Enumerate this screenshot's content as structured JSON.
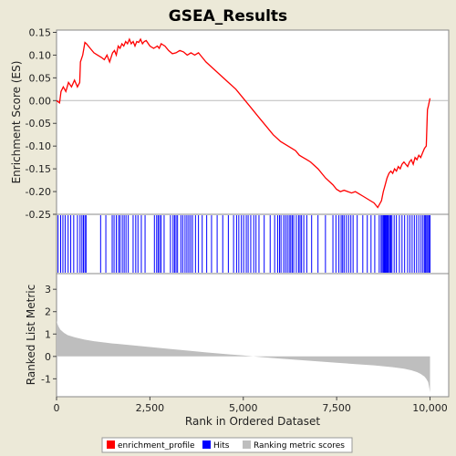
{
  "chart_data": {
    "type": "line",
    "title": "GSEA_Results",
    "xlabel": "Rank in Ordered Dataset",
    "xlim": [
      0,
      10500
    ],
    "xticks": [
      0,
      2500,
      5000,
      7500,
      10000
    ],
    "xtick_labels": [
      "0",
      "2,500",
      "5,000",
      "7,500",
      "10,000"
    ],
    "legend": {
      "placement": "bottom",
      "entries": [
        {
          "label": "enrichment_profile",
          "color": "#FF0000"
        },
        {
          "label": "Hits",
          "color": "#0000FF"
        },
        {
          "label": "Ranking metric scores",
          "color": "#BEBEBE"
        }
      ]
    },
    "panels": [
      {
        "name": "enrichment",
        "ylabel": "Enrichment Score (ES)",
        "ylim": [
          -0.25,
          0.155
        ],
        "yticks": [
          0.15,
          0.1,
          0.05,
          0.0,
          -0.05,
          -0.1,
          -0.15,
          -0.2,
          -0.25
        ],
        "ytick_labels": [
          "0.15",
          "0.10",
          "0.05",
          "0.00",
          "-0.05",
          "-0.10",
          "-0.15",
          "-0.20",
          "-0.25"
        ],
        "series": [
          {
            "color": "#FF0000",
            "x": [
              0,
              80,
              120,
              180,
              250,
              320,
              400,
              480,
              560,
              620,
              640,
              700,
              760,
              800,
              900,
              1000,
              1100,
              1200,
              1280,
              1350,
              1420,
              1500,
              1550,
              1600,
              1650,
              1700,
              1750,
              1800,
              1850,
              1900,
              1950,
              2000,
              2050,
              2100,
              2150,
              2200,
              2250,
              2300,
              2350,
              2400,
              2500,
              2600,
              2700,
              2750,
              2800,
              2900,
              3000,
              3100,
              3200,
              3300,
              3400,
              3500,
              3600,
              3700,
              3800,
              3900,
              4000,
              4200,
              4400,
              4600,
              4800,
              5000,
              5200,
              5400,
              5600,
              5800,
              6000,
              6100,
              6200,
              6300,
              6400,
              6500,
              6600,
              6700,
              6800,
              7000,
              7200,
              7400,
              7500,
              7600,
              7700,
              7800,
              7900,
              8000,
              8100,
              8200,
              8300,
              8400,
              8500,
              8600,
              8700,
              8750,
              8800,
              8850,
              8900,
              8950,
              9000,
              9050,
              9100,
              9150,
              9200,
              9250,
              9300,
              9350,
              9400,
              9450,
              9500,
              9550,
              9600,
              9650,
              9700,
              9750,
              9800,
              9850,
              9900,
              9930,
              9960,
              10000
            ],
            "values": [
              0.0,
              -0.005,
              0.02,
              0.03,
              0.02,
              0.04,
              0.03,
              0.045,
              0.03,
              0.04,
              0.085,
              0.1,
              0.128,
              0.125,
              0.115,
              0.105,
              0.1,
              0.095,
              0.09,
              0.1,
              0.085,
              0.105,
              0.11,
              0.1,
              0.12,
              0.115,
              0.125,
              0.12,
              0.13,
              0.125,
              0.135,
              0.125,
              0.13,
              0.12,
              0.13,
              0.128,
              0.135,
              0.125,
              0.13,
              0.132,
              0.12,
              0.115,
              0.12,
              0.115,
              0.125,
              0.12,
              0.11,
              0.103,
              0.105,
              0.11,
              0.107,
              0.1,
              0.105,
              0.1,
              0.105,
              0.095,
              0.085,
              0.07,
              0.055,
              0.04,
              0.025,
              0.005,
              -0.015,
              -0.035,
              -0.055,
              -0.075,
              -0.09,
              -0.095,
              -0.1,
              -0.105,
              -0.11,
              -0.12,
              -0.125,
              -0.13,
              -0.135,
              -0.15,
              -0.17,
              -0.185,
              -0.195,
              -0.2,
              -0.197,
              -0.2,
              -0.203,
              -0.2,
              -0.205,
              -0.21,
              -0.215,
              -0.22,
              -0.225,
              -0.235,
              -0.22,
              -0.2,
              -0.185,
              -0.17,
              -0.16,
              -0.155,
              -0.16,
              -0.15,
              -0.155,
              -0.145,
              -0.15,
              -0.14,
              -0.135,
              -0.14,
              -0.145,
              -0.135,
              -0.13,
              -0.14,
              -0.125,
              -0.13,
              -0.12,
              -0.125,
              -0.115,
              -0.105,
              -0.1,
              -0.02,
              -0.01,
              0.005
            ]
          }
        ]
      },
      {
        "name": "hits",
        "hit_ranks": [
          40,
          110,
          170,
          230,
          310,
          380,
          460,
          560,
          630,
          680,
          720,
          760,
          790,
          1180,
          1320,
          1490,
          1540,
          1600,
          1660,
          1700,
          1760,
          1810,
          1860,
          1920,
          2050,
          2120,
          2180,
          2270,
          2370,
          2620,
          2680,
          2720,
          2760,
          2800,
          2880,
          3050,
          3120,
          3160,
          3200,
          3240,
          3330,
          3380,
          3440,
          3490,
          3540,
          3590,
          3640,
          3720,
          3800,
          3900,
          4020,
          4150,
          4300,
          4450,
          4600,
          4740,
          4820,
          4880,
          4950,
          5010,
          5080,
          5130,
          5200,
          5280,
          5340,
          5420,
          5560,
          5720,
          5840,
          5920,
          5970,
          6010,
          6080,
          6130,
          6180,
          6230,
          6270,
          6310,
          6350,
          6420,
          6480,
          6520,
          6560,
          6620,
          6700,
          6830,
          7000,
          7200,
          7400,
          7480,
          7560,
          7620,
          7660,
          7700,
          7760,
          7820,
          7880,
          7940,
          8050,
          8200,
          8320,
          8420,
          8520,
          8640,
          8690,
          8720,
          8750,
          8770,
          8790,
          8810,
          8830,
          8850,
          8870,
          8890,
          8920,
          8950,
          8980,
          9040,
          9100,
          9180,
          9250,
          9320,
          9400,
          9460,
          9520,
          9580,
          9640,
          9700,
          9760,
          9810,
          9850,
          9880,
          9910,
          9940,
          9970,
          10000
        ]
      },
      {
        "name": "ranked_metric",
        "ylabel": "Ranked List Metric",
        "ylim": [
          -1.8,
          3.7
        ],
        "yticks": [
          3,
          2,
          1,
          0,
          -1
        ],
        "ytick_labels": [
          "3",
          "2",
          "1",
          "0",
          "-1"
        ],
        "fill_color": "#BEBEBE",
        "x": [
          0,
          25,
          50,
          100,
          200,
          300,
          500,
          750,
          1000,
          1500,
          2000,
          2500,
          3000,
          3500,
          4000,
          4500,
          5000,
          5500,
          6000,
          6500,
          7000,
          7500,
          8000,
          8500,
          9000,
          9300,
          9500,
          9650,
          9750,
          9850,
          9900,
          9950,
          9980,
          10000
        ],
        "values": [
          1.6,
          1.45,
          1.35,
          1.2,
          1.05,
          0.95,
          0.85,
          0.75,
          0.68,
          0.58,
          0.5,
          0.42,
          0.34,
          0.26,
          0.18,
          0.11,
          0.04,
          -0.03,
          -0.1,
          -0.16,
          -0.22,
          -0.28,
          -0.34,
          -0.4,
          -0.48,
          -0.55,
          -0.62,
          -0.7,
          -0.78,
          -0.9,
          -1.0,
          -1.15,
          -1.4,
          -1.6
        ]
      }
    ]
  }
}
